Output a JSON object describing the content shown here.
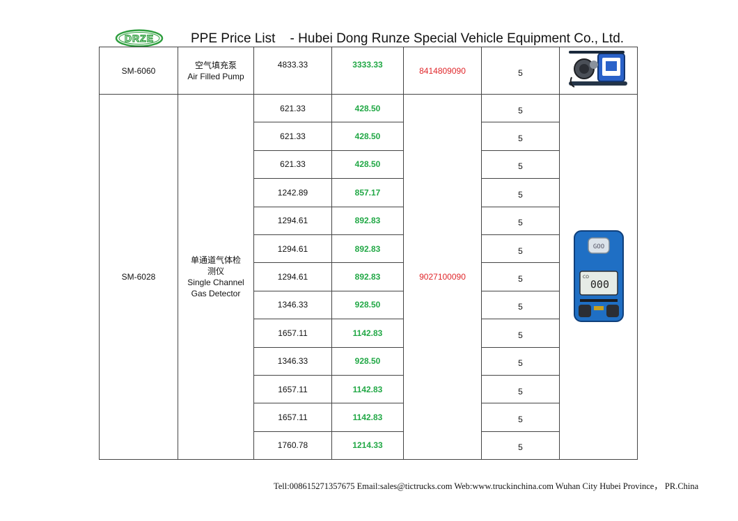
{
  "header": {
    "logo_text": "DRZE",
    "title": "PPE Price List    - Hubei Dong Runze Special Vehicle Equipment Co., Ltd."
  },
  "products": [
    {
      "model": "SM-6060",
      "name_zh": "空气填充泵",
      "name_en": "Air Filled Pump",
      "hs_code": "8414809090",
      "image_icon": "air-compressor-icon",
      "rows": [
        {
          "price": "4833.33",
          "sale": "3333.33",
          "moq": "5"
        }
      ]
    },
    {
      "model": "SM-6028",
      "name_zh": "单通道气体检测仪",
      "name_en": "Single Channel Gas Detector",
      "hs_code": "9027100090",
      "image_icon": "gas-detector-icon",
      "device_display": "000",
      "device_label": "CO",
      "rows": [
        {
          "price": "621.33",
          "sale": "428.50",
          "moq": "5"
        },
        {
          "price": "621.33",
          "sale": "428.50",
          "moq": "5"
        },
        {
          "price": "621.33",
          "sale": "428.50",
          "moq": "5"
        },
        {
          "price": "1242.89",
          "sale": "857.17",
          "moq": "5"
        },
        {
          "price": "1294.61",
          "sale": "892.83",
          "moq": "5"
        },
        {
          "price": "1294.61",
          "sale": "892.83",
          "moq": "5"
        },
        {
          "price": "1294.61",
          "sale": "892.83",
          "moq": "5"
        },
        {
          "price": "1346.33",
          "sale": "928.50",
          "moq": "5"
        },
        {
          "price": "1657.11",
          "sale": "1142.83",
          "moq": "5"
        },
        {
          "price": "1346.33",
          "sale": "928.50",
          "moq": "5"
        },
        {
          "price": "1657.11",
          "sale": "1142.83",
          "moq": "5"
        },
        {
          "price": "1657.11",
          "sale": "1142.83",
          "moq": "5"
        },
        {
          "price": "1760.78",
          "sale": "1214.33",
          "moq": "5"
        }
      ]
    }
  ],
  "colors": {
    "sale_price": "#22a846",
    "hs_code": "#e0262a",
    "logo": "#2e9e3e",
    "device_body": "#1f6fc4"
  },
  "footer": {
    "contact": "Tell:008615271357675 Email:sales@tictrucks.com Web:www.truckinchina.com Wuhan City Hubei Province， PR.China"
  }
}
